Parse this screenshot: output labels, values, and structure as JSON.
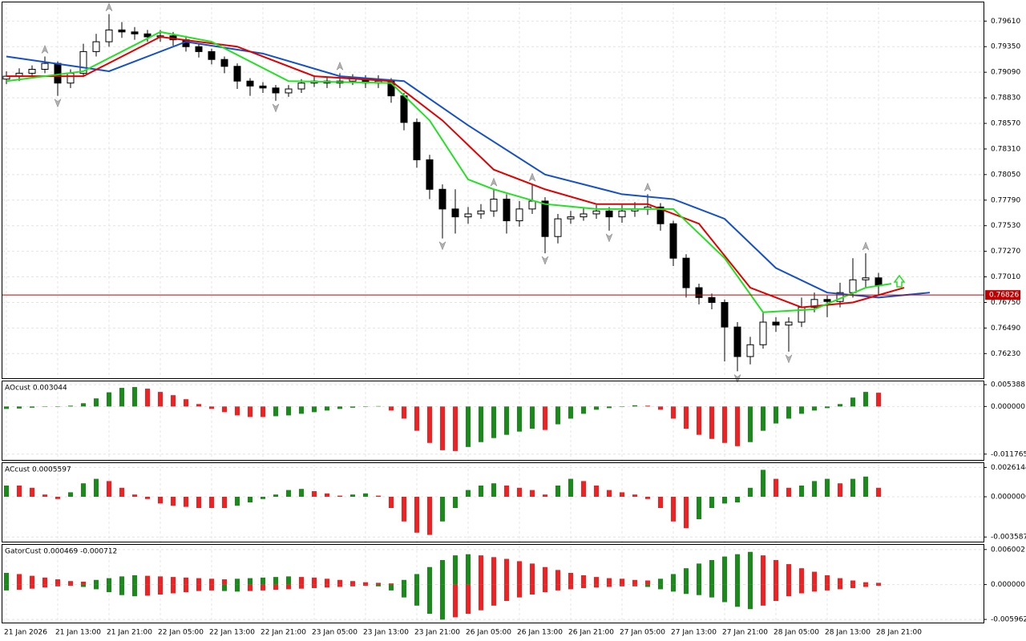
{
  "chart_data": {
    "type": "candlestick",
    "candles": [
      [
        0.7902,
        0.791,
        0.7897,
        0.7905
      ],
      [
        0.7905,
        0.7913,
        0.79,
        0.7908
      ],
      [
        0.7908,
        0.7916,
        0.7904,
        0.7912
      ],
      [
        0.7912,
        0.7925,
        0.7908,
        0.7918
      ],
      [
        0.7918,
        0.792,
        0.7885,
        0.7898
      ],
      [
        0.7898,
        0.7912,
        0.7893,
        0.7908
      ],
      [
        0.7908,
        0.7938,
        0.7904,
        0.793
      ],
      [
        0.793,
        0.7948,
        0.7925,
        0.794
      ],
      [
        0.794,
        0.7968,
        0.7935,
        0.7952
      ],
      [
        0.7952,
        0.796,
        0.7944,
        0.795
      ],
      [
        0.795,
        0.7955,
        0.7942,
        0.7948
      ],
      [
        0.7948,
        0.7952,
        0.794,
        0.7945
      ],
      [
        0.7945,
        0.7952,
        0.794,
        0.7946
      ],
      [
        0.7946,
        0.795,
        0.7936,
        0.7942
      ],
      [
        0.7942,
        0.7946,
        0.793,
        0.7935
      ],
      [
        0.7935,
        0.7938,
        0.7924,
        0.793
      ],
      [
        0.793,
        0.7933,
        0.7917,
        0.7922
      ],
      [
        0.7922,
        0.7925,
        0.7908,
        0.7915
      ],
      [
        0.7915,
        0.7918,
        0.7892,
        0.79
      ],
      [
        0.79,
        0.7903,
        0.7885,
        0.7895
      ],
      [
        0.7895,
        0.7899,
        0.7888,
        0.7893
      ],
      [
        0.7893,
        0.7896,
        0.788,
        0.7888
      ],
      [
        0.7888,
        0.7896,
        0.7884,
        0.7892
      ],
      [
        0.7892,
        0.7902,
        0.7888,
        0.7898
      ],
      [
        0.7898,
        0.7906,
        0.7894,
        0.79
      ],
      [
        0.79,
        0.7904,
        0.7893,
        0.7898
      ],
      [
        0.7898,
        0.7908,
        0.7893,
        0.79
      ],
      [
        0.79,
        0.7907,
        0.7896,
        0.7903
      ],
      [
        0.7903,
        0.7906,
        0.7893,
        0.7898
      ],
      [
        0.7898,
        0.7906,
        0.7893,
        0.79
      ],
      [
        0.79,
        0.7903,
        0.7878,
        0.7885
      ],
      [
        0.7885,
        0.7888,
        0.785,
        0.7858
      ],
      [
        0.7858,
        0.7862,
        0.7812,
        0.782
      ],
      [
        0.782,
        0.7825,
        0.778,
        0.779
      ],
      [
        0.779,
        0.7795,
        0.774,
        0.777
      ],
      [
        0.777,
        0.779,
        0.7745,
        0.7762
      ],
      [
        0.7762,
        0.7772,
        0.7755,
        0.7765
      ],
      [
        0.7765,
        0.7775,
        0.776,
        0.7768
      ],
      [
        0.7768,
        0.779,
        0.7762,
        0.778
      ],
      [
        0.778,
        0.7785,
        0.7745,
        0.7758
      ],
      [
        0.7758,
        0.7778,
        0.7752,
        0.777
      ],
      [
        0.777,
        0.7795,
        0.7765,
        0.7778
      ],
      [
        0.7778,
        0.7782,
        0.7725,
        0.7742
      ],
      [
        0.7742,
        0.7765,
        0.7735,
        0.776
      ],
      [
        0.776,
        0.7768,
        0.7755,
        0.7762
      ],
      [
        0.7762,
        0.7771,
        0.7758,
        0.7765
      ],
      [
        0.7765,
        0.7774,
        0.776,
        0.7768
      ],
      [
        0.7768,
        0.7772,
        0.7748,
        0.7762
      ],
      [
        0.7762,
        0.7774,
        0.7756,
        0.7768
      ],
      [
        0.7768,
        0.7777,
        0.7762,
        0.777
      ],
      [
        0.777,
        0.7785,
        0.7764,
        0.7772
      ],
      [
        0.7772,
        0.7776,
        0.7748,
        0.7755
      ],
      [
        0.7755,
        0.7758,
        0.7712,
        0.772
      ],
      [
        0.772,
        0.7724,
        0.768,
        0.769
      ],
      [
        0.769,
        0.7694,
        0.7673,
        0.768
      ],
      [
        0.768,
        0.7684,
        0.7668,
        0.7675
      ],
      [
        0.7675,
        0.7678,
        0.7615,
        0.765
      ],
      [
        0.765,
        0.7655,
        0.7605,
        0.762
      ],
      [
        0.762,
        0.764,
        0.7612,
        0.7632
      ],
      [
        0.7632,
        0.7665,
        0.7628,
        0.7655
      ],
      [
        0.7655,
        0.766,
        0.7645,
        0.7652
      ],
      [
        0.7652,
        0.766,
        0.7625,
        0.7655
      ],
      [
        0.7655,
        0.768,
        0.765,
        0.767
      ],
      [
        0.767,
        0.7685,
        0.7665,
        0.7678
      ],
      [
        0.7678,
        0.7682,
        0.766,
        0.7676
      ],
      [
        0.7676,
        0.7695,
        0.767,
        0.7685
      ],
      [
        0.7685,
        0.772,
        0.768,
        0.7698
      ],
      [
        0.7698,
        0.7725,
        0.769,
        0.77
      ],
      [
        0.77,
        0.7705,
        0.7683,
        0.7692
      ]
    ],
    "up_candle_color": "#ffffff",
    "down_candle_color": "#000000",
    "ylim": [
      0.7598,
      0.798
    ],
    "yticks": [
      {
        "value": 0.7961,
        "label": "0.79610"
      },
      {
        "value": 0.7935,
        "label": "0.79350"
      },
      {
        "value": 0.7909,
        "label": "0.79090"
      },
      {
        "value": 0.7883,
        "label": "0.78830"
      },
      {
        "value": 0.7857,
        "label": "0.78570"
      },
      {
        "value": 0.7831,
        "label": "0.78310"
      },
      {
        "value": 0.7805,
        "label": "0.78050"
      },
      {
        "value": 0.7779,
        "label": "0.77790"
      },
      {
        "value": 0.7753,
        "label": "0.77530"
      },
      {
        "value": 0.7727,
        "label": "0.77270"
      },
      {
        "value": 0.7701,
        "label": "0.77010"
      },
      {
        "value": 0.7675,
        "label": "0.76750"
      },
      {
        "value": 0.7649,
        "label": "0.76490"
      },
      {
        "value": 0.7623,
        "label": "0.76230"
      }
    ],
    "grid": true,
    "moving_averages": [
      {
        "color": "#1450c8",
        "x": [
          0,
          8,
          14,
          20,
          26,
          31,
          36,
          42,
          48,
          52,
          56,
          60,
          64,
          68,
          72
        ],
        "values": [
          0.7925,
          0.791,
          0.794,
          0.7928,
          0.7905,
          0.79,
          0.7855,
          0.7805,
          0.7785,
          0.778,
          0.776,
          0.771,
          0.7685,
          0.768,
          0.7685
        ]
      },
      {
        "color": "#e00000",
        "x": [
          0,
          6,
          12,
          18,
          24,
          30,
          34,
          38,
          42,
          46,
          50,
          54,
          58,
          62,
          66,
          70
        ],
        "values": [
          0.7905,
          0.7905,
          0.7945,
          0.7935,
          0.7905,
          0.79,
          0.786,
          0.781,
          0.779,
          0.7775,
          0.7775,
          0.7755,
          0.769,
          0.767,
          0.7675,
          0.769
        ]
      },
      {
        "color": "#22e022",
        "x": [
          0,
          6,
          12,
          16,
          22,
          30,
          33,
          36,
          38,
          42,
          46,
          52,
          56,
          59,
          63,
          67,
          69
        ],
        "values": [
          0.79,
          0.791,
          0.795,
          0.794,
          0.79,
          0.7898,
          0.786,
          0.78,
          0.779,
          0.7775,
          0.777,
          0.777,
          0.772,
          0.7665,
          0.7668,
          0.769,
          0.7694
        ]
      }
    ],
    "fractals_up": [
      3,
      8,
      26,
      38,
      41,
      50,
      67
    ],
    "fractals_down": [
      4,
      21,
      34,
      42,
      47,
      57,
      61
    ],
    "current_price": 0.76826,
    "price_line_color": "#c00000",
    "time_labels": [
      "21 Jan 2026",
      "21 Jan 13:00",
      "21 Jan 21:00",
      "22 Jan 05:00",
      "22 Jan 13:00",
      "22 Jan 21:00",
      "23 Jan 05:00",
      "23 Jan 13:00",
      "23 Jan 21:00",
      "26 Jan 05:00",
      "26 Jan 13:00",
      "26 Jan 21:00",
      "27 Jan 05:00",
      "27 Jan 13:00",
      "27 Jan 21:00",
      "28 Jan 05:00",
      "28 Jan 13:00",
      "28 Jan 21:00"
    ],
    "indicators": [
      {
        "type": "bar",
        "title": "AOcust 0.003044",
        "up_color": "#1a8a1a",
        "down_color": "#ee2222",
        "ylim": [
          -0.0132,
          0.0062
        ],
        "yticks": [
          0.005388,
          {
            "value": 0,
            "label": "0.000000"
          },
          -0.011765
        ],
        "series": [
          {
            "values": [
              -0.0006,
              -0.0005,
              -0.0003,
              -0.0001,
              0,
              0.0002,
              0.0008,
              0.002,
              0.0035,
              0.0046,
              0.0048,
              0.0044,
              0.0036,
              0.0028,
              0.0018,
              0.0006,
              -0.0006,
              -0.0014,
              -0.0022,
              -0.0026,
              -0.0026,
              -0.0024,
              -0.0022,
              -0.0018,
              -0.0014,
              -0.001,
              -0.0006,
              -0.0003,
              0,
              0.0001,
              -0.001,
              -0.003,
              -0.006,
              -0.009,
              -0.0108,
              -0.011,
              -0.01,
              -0.0088,
              -0.0078,
              -0.007,
              -0.0062,
              -0.0055,
              -0.0058,
              -0.0044,
              -0.003,
              -0.0018,
              -0.0008,
              -0.0004,
              0,
              0.0003,
              0.0002,
              -0.0008,
              -0.003,
              -0.0055,
              -0.007,
              -0.008,
              -0.009,
              -0.0098,
              -0.0088,
              -0.006,
              -0.0042,
              -0.003,
              -0.0018,
              -0.001,
              -0.0004,
              0.0006,
              0.0022,
              0.0036,
              0.0034
            ]
          }
        ]
      },
      {
        "type": "bar",
        "title": "ACcust 0.0005597",
        "up_color": "#1a8a1a",
        "down_color": "#ee2222",
        "ylim": [
          -0.004,
          0.003
        ],
        "yticks": [
          0.0026144,
          {
            "value": 0,
            "label": "0.0000000"
          },
          -0.0035877
        ],
        "series": [
          {
            "values": [
              0.001,
              0.001,
              0.0008,
              0.0002,
              -0.0002,
              0.0004,
              0.0012,
              0.0016,
              0.0014,
              0.0008,
              0.0002,
              -0.0002,
              -0.0006,
              -0.0008,
              -0.0009,
              -0.001,
              -0.001,
              -0.001,
              -0.0008,
              -0.0005,
              -0.0002,
              0.0002,
              0.0006,
              0.0007,
              0.0005,
              0.0003,
              0.0001,
              0.0002,
              0.0003,
              0.0001,
              -0.001,
              -0.0022,
              -0.0032,
              -0.0034,
              -0.0022,
              -0.001,
              0.0006,
              0.001,
              0.0012,
              0.001,
              0.0008,
              0.0006,
              0.0002,
              0.001,
              0.0016,
              0.0014,
              0.001,
              0.0006,
              0.0004,
              0.0002,
              -0.0002,
              -0.001,
              -0.0022,
              -0.0028,
              -0.002,
              -0.001,
              -0.0006,
              -0.0005,
              0.0008,
              0.0024,
              0.0016,
              0.0008,
              0.001,
              0.0014,
              0.0016,
              0.0012,
              0.0016,
              0.0018,
              0.0008
            ]
          }
        ]
      },
      {
        "type": "gator",
        "title": "GatorCust 0.000469 -0.000712",
        "up_color": "#1a8a1a",
        "down_color": "#ee2222",
        "ylim": [
          -0.0065,
          0.0068
        ],
        "yticks": [
          0.006002,
          {
            "value": 0,
            "label": "0.000000"
          },
          -0.005962
        ],
        "series": [
          {
            "values": [
              0.002,
              0.0018,
              0.0015,
              0.0012,
              0.0009,
              0.0006,
              0.0005,
              0.0008,
              0.0011,
              0.0014,
              0.0016,
              0.0015,
              0.0014,
              0.0013,
              0.0012,
              0.0011,
              0.001,
              0.0009,
              0.001,
              0.0011,
              0.0012,
              0.0013,
              0.0014,
              0.0013,
              0.0012,
              0.001,
              0.0008,
              0.0006,
              0.0004,
              0.0003,
              0.0002,
              0.0008,
              0.0018,
              0.003,
              0.0042,
              0.005,
              0.0052,
              0.005,
              0.0047,
              0.0044,
              0.004,
              0.0036,
              0.003,
              0.0025,
              0.002,
              0.0016,
              0.0013,
              0.0011,
              0.001,
              0.0008,
              0.0007,
              0.001,
              0.0018,
              0.0028,
              0.0036,
              0.0042,
              0.0048,
              0.0052,
              0.0056,
              0.005,
              0.0042,
              0.0035,
              0.0028,
              0.0022,
              0.0016,
              0.0011,
              0.0007,
              0.0004,
              0.0003
            ]
          },
          {
            "values": [
              -0.001,
              -0.0009,
              -0.0007,
              -0.0005,
              -0.0003,
              -0.0002,
              -0.0004,
              -0.0008,
              -0.0013,
              -0.0018,
              -0.002,
              -0.0019,
              -0.0017,
              -0.0015,
              -0.0013,
              -0.0011,
              -0.001,
              -0.0011,
              -0.0012,
              -0.0011,
              -0.001,
              -0.0009,
              -0.0008,
              -0.0007,
              -0.0006,
              -0.0005,
              -0.0004,
              -0.0003,
              -0.0002,
              -0.0003,
              -0.001,
              -0.0022,
              -0.0036,
              -0.005,
              -0.006,
              -0.0056,
              -0.005,
              -0.0044,
              -0.0036,
              -0.0028,
              -0.0022,
              -0.0017,
              -0.0013,
              -0.001,
              -0.0008,
              -0.0006,
              -0.0005,
              -0.0004,
              -0.0003,
              -0.0003,
              -0.0004,
              -0.0008,
              -0.0012,
              -0.0016,
              -0.0018,
              -0.0022,
              -0.003,
              -0.0038,
              -0.0042,
              -0.0036,
              -0.0028,
              -0.002,
              -0.0015,
              -0.0012,
              -0.001,
              -0.0008,
              -0.0006,
              -0.0004,
              -0.0002
            ]
          }
        ]
      }
    ]
  }
}
